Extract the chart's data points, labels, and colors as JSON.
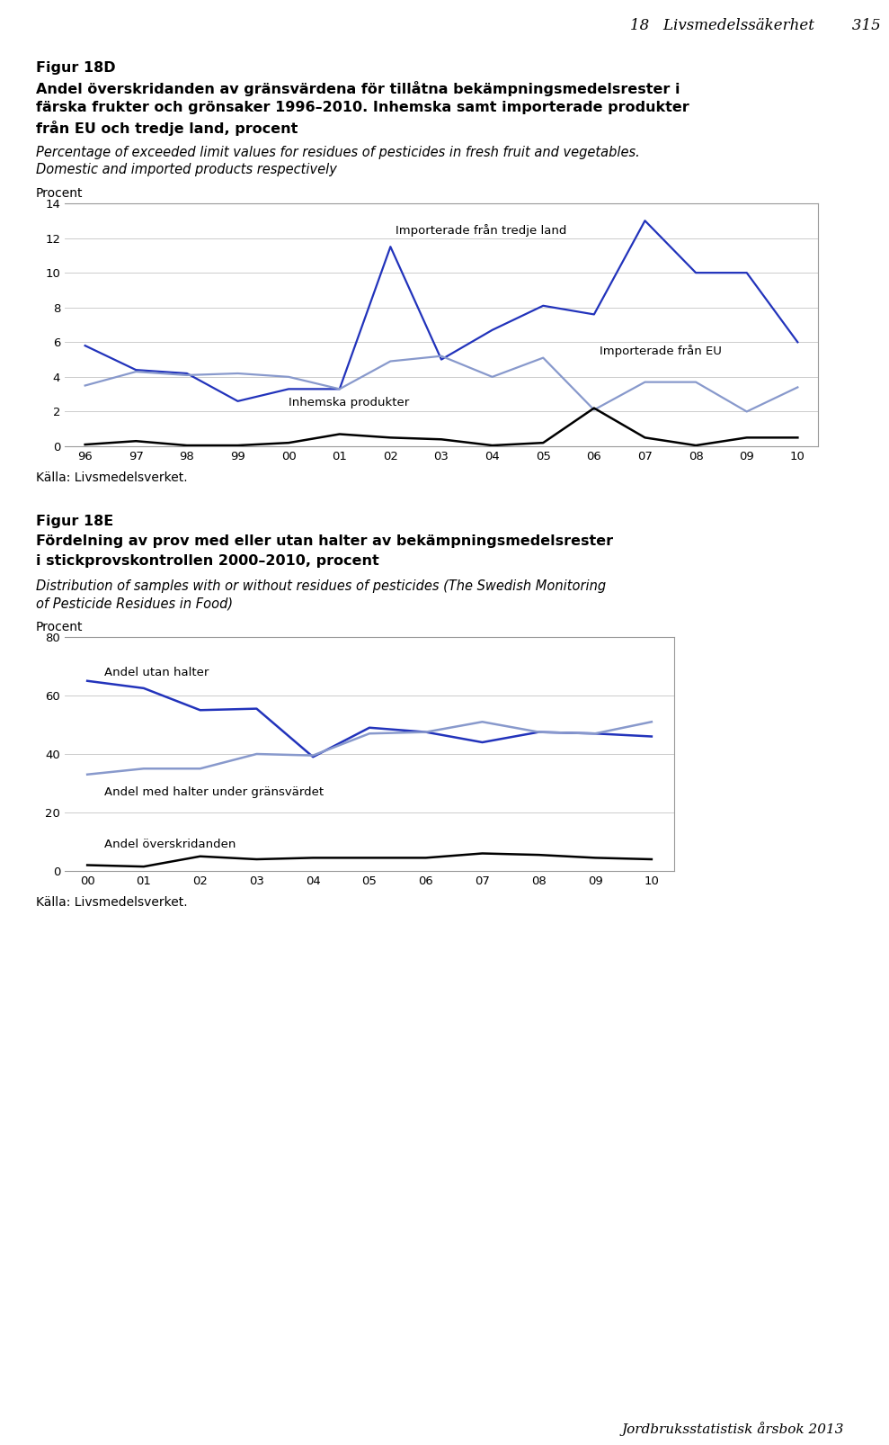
{
  "header_bar_color": "#aab4d4",
  "header_text": "18   Livsmedelssäkerhet        315",
  "fig18d_title1": "Figur 18D",
  "fig18d_title2": "Andel överskridanden av gränsvärdena för tillåtna bekämpningsmedelsrester i",
  "fig18d_title3": "färska frukter och grönsaker 1996–2010. Inhemska samt importerade produkter",
  "fig18d_title4": "från EU och tredje land, procent",
  "fig18d_sub1": "Percentage of exceeded limit values for residues of pesticides in fresh fruit and vegetables.",
  "fig18d_sub2": "Domestic and imported products respectively",
  "fig18d_ylabel": "Procent",
  "fig18d_ylim": [
    0,
    14
  ],
  "fig18d_yticks": [
    0,
    2,
    4,
    6,
    8,
    10,
    12,
    14
  ],
  "fig18d_years": [
    "96",
    "97",
    "98",
    "99",
    "00",
    "01",
    "02",
    "03",
    "04",
    "05",
    "06",
    "07",
    "08",
    "09",
    "10"
  ],
  "fig18d_tredje": [
    5.8,
    4.4,
    4.2,
    2.6,
    3.3,
    3.3,
    11.5,
    5.0,
    6.7,
    8.1,
    7.6,
    13.0,
    10.0,
    10.0,
    6.0
  ],
  "fig18d_eu": [
    3.5,
    4.3,
    4.1,
    4.2,
    4.0,
    3.3,
    4.9,
    5.2,
    4.0,
    5.1,
    2.1,
    3.7,
    3.7,
    2.0,
    3.4
  ],
  "fig18d_inhemska": [
    0.1,
    0.3,
    0.05,
    0.05,
    0.2,
    0.7,
    0.5,
    0.4,
    0.05,
    0.2,
    2.2,
    0.5,
    0.05,
    0.5,
    0.5
  ],
  "fig18d_tredje_color": "#2233bb",
  "fig18d_eu_color": "#8899cc",
  "fig18d_inhemska_color": "#000000",
  "fig18d_label_tredje": "Importerade från tredje land",
  "fig18d_label_eu": "Importerade från EU",
  "fig18d_label_inhemska": "Inhemska produkter",
  "fig18d_source": "Källa: Livsmedelsverket.",
  "fig18e_title1": "Figur 18E",
  "fig18e_title2": "Fördelning av prov med eller utan halter av bekämpningsmedelsrester",
  "fig18e_title3": "i stickprovskontrollen 2000–2010, procent",
  "fig18e_sub1": "Distribution of samples with or without residues of pesticides (The Swedish Monitoring",
  "fig18e_sub2": "of Pesticide Residues in Food)",
  "fig18e_ylabel": "Procent",
  "fig18e_ylim": [
    0,
    80
  ],
  "fig18e_yticks": [
    0,
    20,
    40,
    60,
    80
  ],
  "fig18e_years": [
    "00",
    "01",
    "02",
    "03",
    "04",
    "05",
    "06",
    "07",
    "08",
    "09",
    "10"
  ],
  "fig18e_utan": [
    65.0,
    62.5,
    55.0,
    55.5,
    39.0,
    49.0,
    47.5,
    44.0,
    47.5,
    47.0,
    46.0
  ],
  "fig18e_under": [
    33.0,
    35.0,
    35.0,
    40.0,
    39.5,
    47.0,
    47.5,
    51.0,
    47.5,
    47.0,
    51.0
  ],
  "fig18e_over": [
    2.0,
    1.5,
    5.0,
    4.0,
    4.5,
    4.5,
    4.5,
    6.0,
    5.5,
    4.5,
    4.0
  ],
  "fig18e_utan_color": "#2233bb",
  "fig18e_under_color": "#8899cc",
  "fig18e_over_color": "#000000",
  "fig18e_label_utan": "Andel utan halter",
  "fig18e_label_under": "Andel med halter under gränsvärdet",
  "fig18e_label_over": "Andel överskridanden",
  "fig18e_source": "Källa: Livsmedelsverket.",
  "footer_text": "Jordbruksstatistisk årsbok 2013",
  "footer_bar_color": "#aab4d4",
  "background_color": "#ffffff"
}
